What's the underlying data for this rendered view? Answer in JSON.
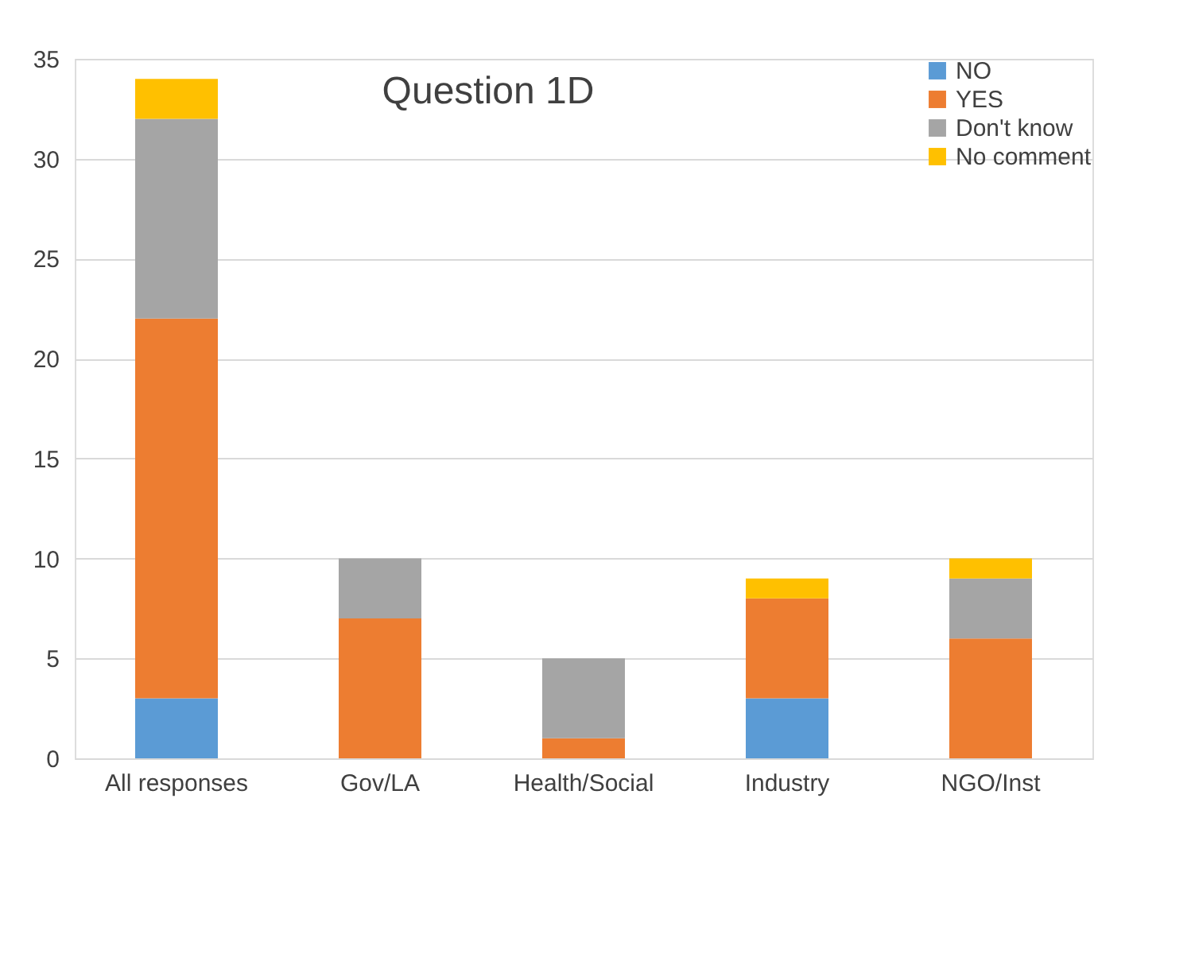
{
  "chart_data": {
    "type": "bar",
    "title": "Question 1D",
    "stacked": true,
    "categories": [
      "All responses",
      "Gov/LA",
      "Health/Social",
      "Industry",
      "NGO/Inst"
    ],
    "series": [
      {
        "name": "NO",
        "color": "#5b9bd5",
        "values": [
          3,
          0,
          0,
          3,
          0
        ]
      },
      {
        "name": "YES",
        "color": "#ed7d31",
        "values": [
          19,
          7,
          1,
          5,
          6
        ]
      },
      {
        "name": "Don't know",
        "color": "#a5a5a5",
        "values": [
          10,
          3,
          4,
          0,
          3
        ]
      },
      {
        "name": "No comment",
        "color": "#ffc000",
        "values": [
          2,
          0,
          0,
          1,
          1
        ]
      }
    ],
    "ylim": [
      0,
      35
    ],
    "yticks": [
      0,
      5,
      10,
      15,
      20,
      25,
      30,
      35
    ],
    "grid": "y",
    "legend": "top right"
  }
}
